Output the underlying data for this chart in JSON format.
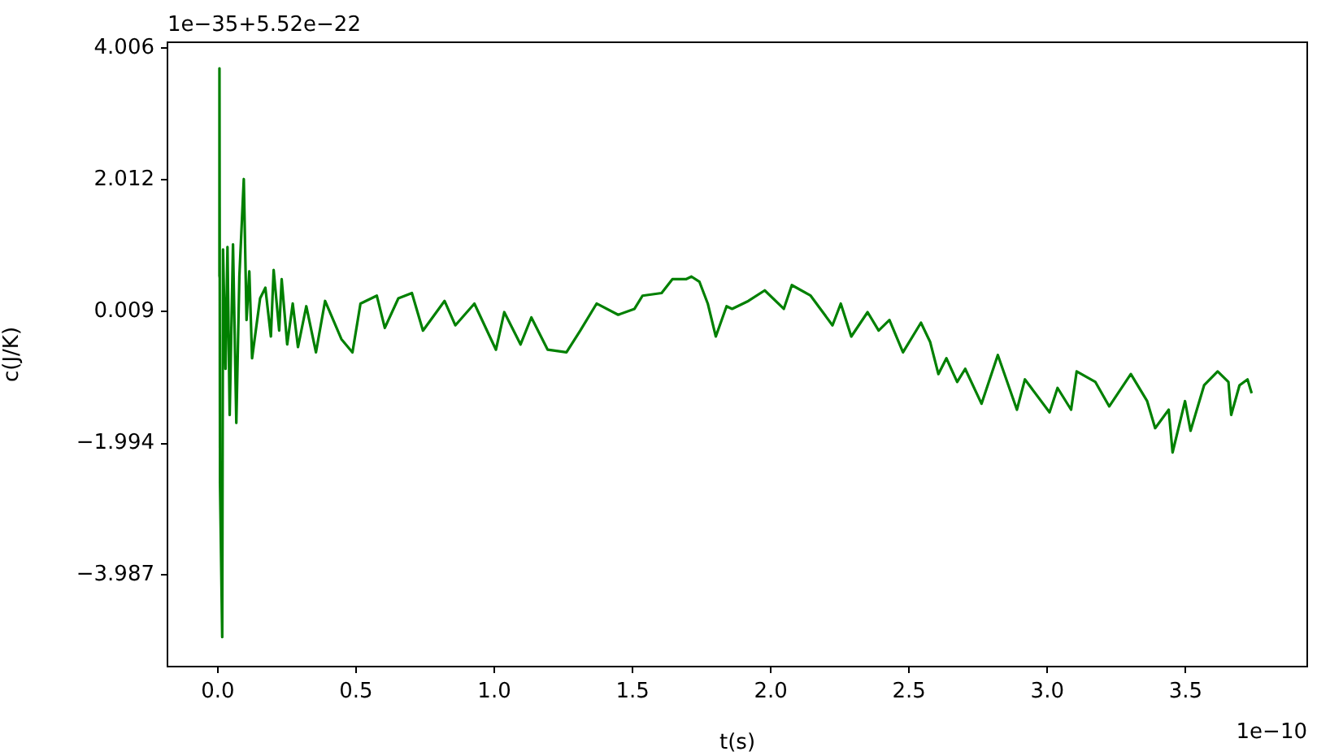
{
  "chart_data": {
    "type": "line",
    "xlabel": "t(s)",
    "ylabel": "c(J/K)",
    "annotations": [
      "1e−35+5.52e−22",
      "1e−10"
    ],
    "xlim": [
      -0.182,
      3.94
    ],
    "ylim": [
      -5.378,
      4.095
    ],
    "xticks": [
      {
        "value": 0,
        "label": "0.0"
      },
      {
        "value": 0.5,
        "label": "0.5"
      },
      {
        "value": 1,
        "label": "1.0"
      },
      {
        "value": 1.5,
        "label": "1.5"
      },
      {
        "value": 2,
        "label": "2.0"
      },
      {
        "value": 2.5,
        "label": "2.5"
      },
      {
        "value": 3,
        "label": "3.0"
      },
      {
        "value": 3.5,
        "label": "3.5"
      }
    ],
    "yticks": [
      {
        "value": -3.987,
        "label": "−3.987"
      },
      {
        "value": -1.994,
        "label": "−1.994"
      },
      0.009,
      2.012,
      4.006
    ],
    "marker": "none",
    "line_style": "solid",
    "series": [
      {
        "color": "#008000",
        "x": [
          0.002,
          0.006,
          0.008,
          0.016,
          0.019,
          0.028,
          0.035,
          0.043,
          0.055,
          0.067,
          0.078,
          0.094,
          0.104,
          0.114,
          0.124,
          0.153,
          0.172,
          0.192,
          0.202,
          0.222,
          0.231,
          0.251,
          0.271,
          0.29,
          0.32,
          0.355,
          0.388,
          0.447,
          0.487,
          0.516,
          0.575,
          0.604,
          0.653,
          0.702,
          0.742,
          0.82,
          0.859,
          0.928,
          1.006,
          1.036,
          1.095,
          1.134,
          1.193,
          1.261,
          1.311,
          1.37,
          1.448,
          1.507,
          1.536,
          1.605,
          1.644,
          1.693,
          1.713,
          1.742,
          1.772,
          1.801,
          1.84,
          1.86,
          1.919,
          1.978,
          2.047,
          2.076,
          2.144,
          2.223,
          2.253,
          2.291,
          2.35,
          2.39,
          2.429,
          2.478,
          2.543,
          2.576,
          2.606,
          2.635,
          2.674,
          2.703,
          2.762,
          2.821,
          2.89,
          2.919,
          3.008,
          3.037,
          3.086,
          3.106,
          3.174,
          3.224,
          3.302,
          3.361,
          3.39,
          3.439,
          3.453,
          3.498,
          3.518,
          3.567,
          3.616,
          3.655,
          3.665,
          3.695,
          3.724,
          3.739
        ],
        "values": [
          0.54,
          3.7,
          -2.58,
          -4.93,
          0.95,
          -0.86,
          0.99,
          -1.56,
          1.03,
          -1.68,
          0.54,
          2.02,
          -0.12,
          0.62,
          -0.7,
          0.21,
          0.37,
          -0.37,
          0.64,
          -0.28,
          0.5,
          -0.49,
          0.13,
          -0.53,
          0.09,
          -0.61,
          0.17,
          -0.41,
          -0.61,
          0.13,
          0.25,
          -0.24,
          0.21,
          0.29,
          -0.28,
          0.17,
          -0.2,
          0.13,
          -0.57,
          0.0,
          -0.49,
          -0.08,
          -0.57,
          -0.61,
          -0.28,
          0.13,
          -0.04,
          0.05,
          0.25,
          0.29,
          0.5,
          0.5,
          0.54,
          0.46,
          0.13,
          -0.37,
          0.09,
          0.05,
          0.17,
          0.33,
          0.05,
          0.41,
          0.25,
          -0.2,
          0.13,
          -0.37,
          0.0,
          -0.28,
          -0.12,
          -0.61,
          -0.16,
          -0.45,
          -0.94,
          -0.7,
          -1.06,
          -0.86,
          -1.39,
          -0.65,
          -1.48,
          -1.02,
          -1.52,
          -1.15,
          -1.48,
          -0.9,
          -1.06,
          -1.43,
          -0.94,
          -1.35,
          -1.76,
          -1.48,
          -2.13,
          -1.35,
          -1.8,
          -1.11,
          -0.9,
          -1.06,
          -1.56,
          -1.11,
          -1.02,
          -1.23
        ]
      }
    ]
  }
}
